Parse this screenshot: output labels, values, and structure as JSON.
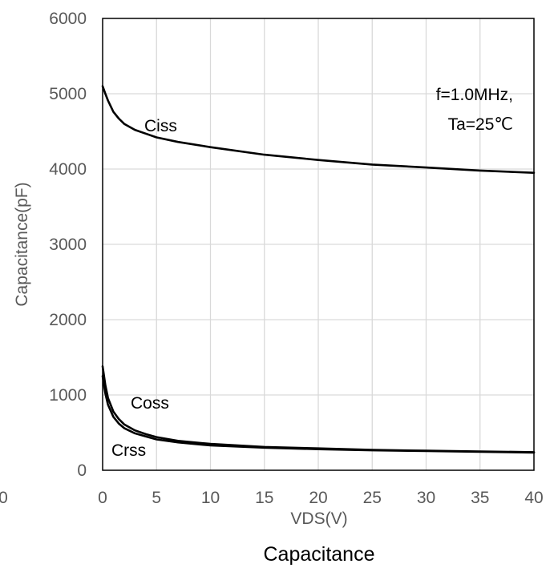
{
  "chart_data": {
    "type": "line",
    "title": "Capacitance",
    "xlabel": "VDS(V)",
    "ylabel": "Capacitance(pF)",
    "xlim": [
      0,
      40
    ],
    "ylim": [
      0,
      6000
    ],
    "grid": true,
    "x_ticks": [
      "0",
      "5",
      "10",
      "15",
      "20",
      "25",
      "30",
      "35",
      "40"
    ],
    "y_ticks": [
      "0",
      "1000",
      "2000",
      "3000",
      "4000",
      "5000",
      "6000"
    ],
    "stray_tick_label": "0",
    "annotations": [
      "f=1.0MHz,",
      "Ta=25℃"
    ],
    "line_color": "#000000",
    "grid_color": "#d9d9d9",
    "series": [
      {
        "name": "Ciss",
        "x": [
          0,
          0.25,
          0.5,
          1,
          1.5,
          2,
          3,
          4,
          5,
          7,
          10,
          15,
          20,
          25,
          30,
          35,
          40
        ],
        "values": [
          5100,
          5000,
          4910,
          4760,
          4670,
          4600,
          4520,
          4470,
          4420,
          4360,
          4290,
          4190,
          4120,
          4060,
          4020,
          3980,
          3950
        ]
      },
      {
        "name": "Coss",
        "x": [
          0,
          0.25,
          0.5,
          1,
          1.5,
          2,
          3,
          4,
          5,
          7,
          10,
          15,
          20,
          25,
          30,
          35,
          40
        ],
        "values": [
          1380,
          1130,
          960,
          780,
          680,
          610,
          530,
          480,
          440,
          390,
          350,
          310,
          290,
          270,
          260,
          250,
          240
        ]
      },
      {
        "name": "Crss",
        "x": [
          0,
          0.25,
          0.5,
          1,
          1.5,
          2,
          3,
          4,
          5,
          7,
          10,
          15,
          20,
          25,
          30,
          35,
          40
        ],
        "values": [
          1250,
          1020,
          870,
          710,
          620,
          560,
          490,
          450,
          410,
          370,
          330,
          300,
          280,
          265,
          255,
          245,
          235
        ]
      }
    ]
  }
}
